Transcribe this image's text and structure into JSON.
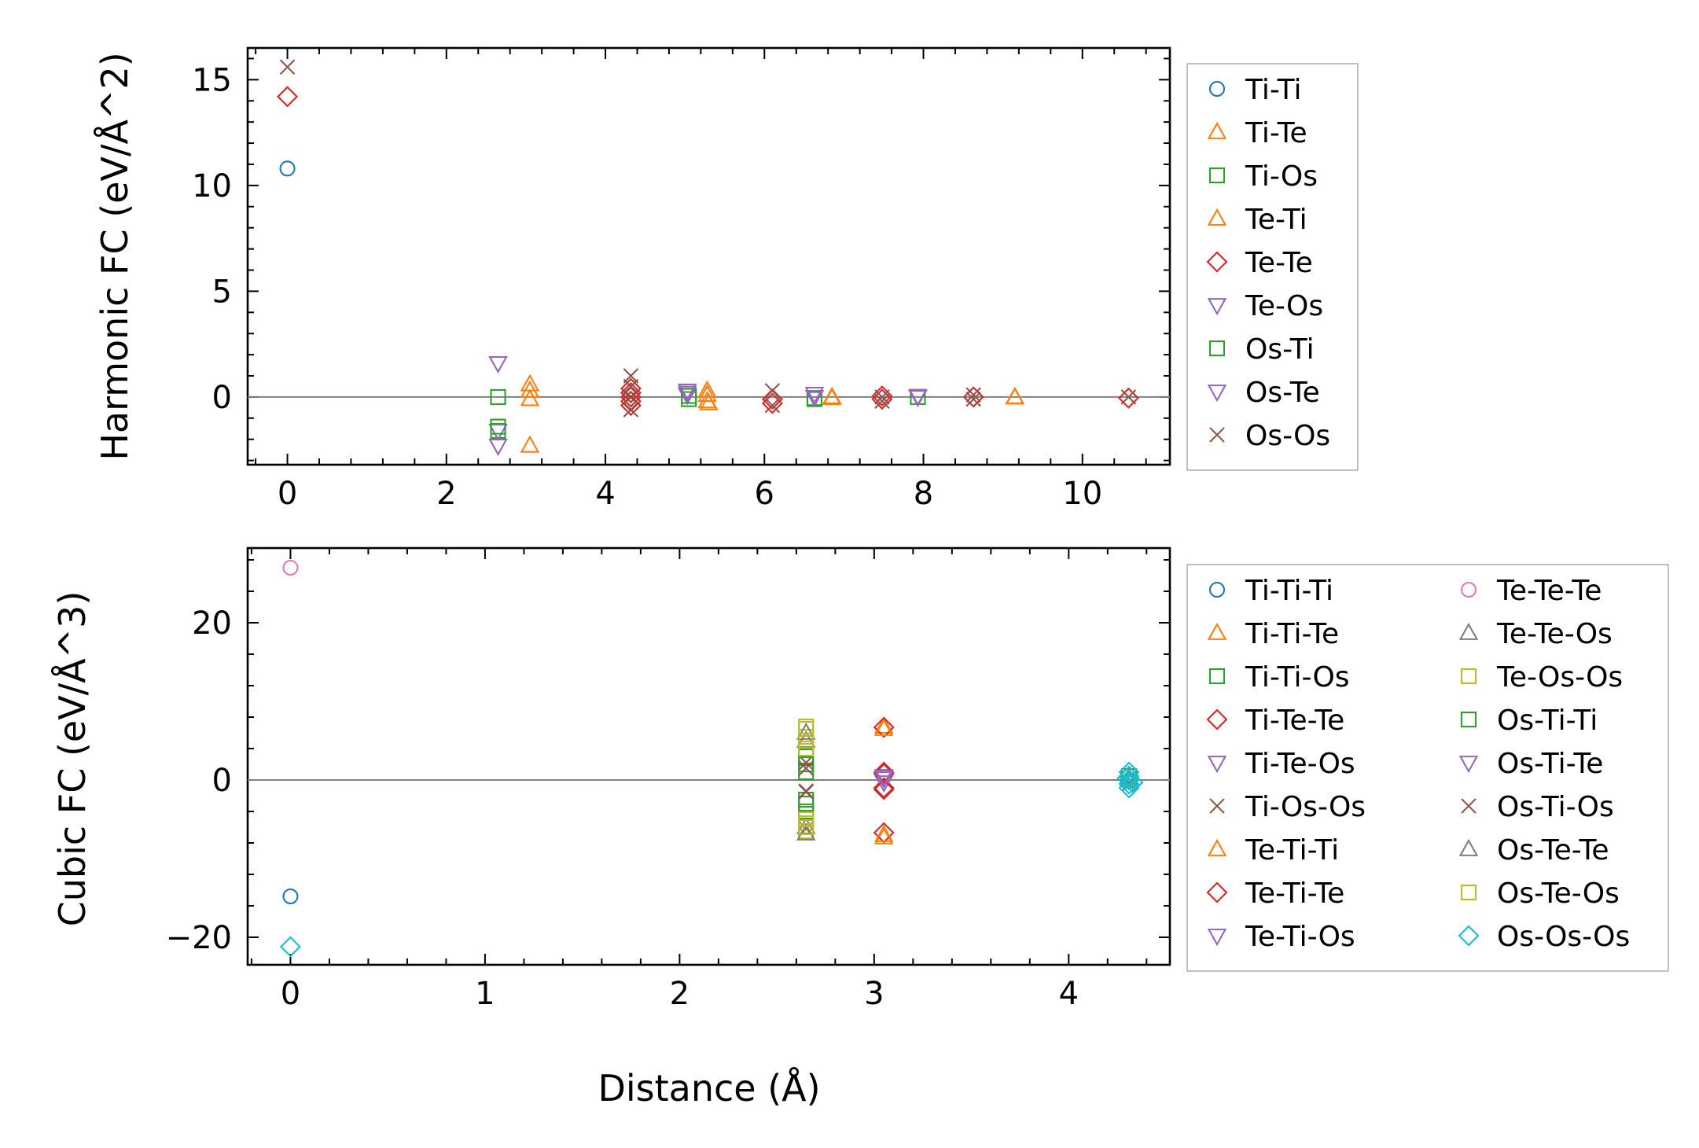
{
  "chart_data": [
    {
      "type": "scatter",
      "panel": "top",
      "ylabel": "Harmonic FC (eV/Å^2)",
      "xlabel": "",
      "xlim": [
        -0.5,
        11.1
      ],
      "ylim": [
        -3.2,
        16.5
      ],
      "xticks": [
        "0",
        "2",
        "4",
        "6",
        "8",
        "10"
      ],
      "yticks": [
        "0",
        "5",
        "10",
        "15"
      ],
      "legend_position": "right-outside",
      "legend_columns": 1,
      "series": [
        {
          "name": "Ti-Ti",
          "marker": "circle",
          "color": "#1f77b4",
          "points": [
            [
              0,
              10.8
            ]
          ]
        },
        {
          "name": "Ti-Te",
          "marker": "triangle-up",
          "color": "#ff7f0e",
          "points": [
            [
              3.05,
              0.6
            ],
            [
              3.05,
              -0.1
            ],
            [
              3.05,
              -2.3
            ],
            [
              5.28,
              0.3
            ],
            [
              5.28,
              -0.2
            ],
            [
              6.85,
              -0.05
            ],
            [
              9.15,
              -0.02
            ]
          ]
        },
        {
          "name": "Ti-Os",
          "marker": "square",
          "color": "#2ca02c",
          "points": [
            [
              2.65,
              0.0
            ],
            [
              2.65,
              -1.6
            ],
            [
              5.05,
              -0.1
            ],
            [
              6.63,
              -0.1
            ],
            [
              7.93,
              0.0
            ]
          ]
        },
        {
          "name": "Te-Ti",
          "marker": "triangle-up",
          "color": "#ff7f0e",
          "points": [
            [
              3.05,
              0.3
            ],
            [
              5.28,
              0.1
            ],
            [
              5.3,
              -0.3
            ],
            [
              6.85,
              0.0
            ],
            [
              9.15,
              0.0
            ]
          ]
        },
        {
          "name": "Te-Te",
          "marker": "diamond",
          "color": "#d62728",
          "points": [
            [
              0,
              14.2
            ],
            [
              4.32,
              0.4
            ],
            [
              4.32,
              0.2
            ],
            [
              4.32,
              0.0
            ],
            [
              4.32,
              -0.2
            ],
            [
              4.32,
              -0.4
            ],
            [
              6.1,
              -0.1
            ],
            [
              6.1,
              -0.3
            ],
            [
              7.48,
              -0.1
            ],
            [
              7.48,
              0.05
            ],
            [
              8.63,
              0.0
            ],
            [
              10.58,
              -0.05
            ]
          ]
        },
        {
          "name": "Te-Os",
          "marker": "triangle-down",
          "color": "#9467bd",
          "points": [
            [
              2.65,
              1.6
            ],
            [
              2.65,
              -1.6
            ],
            [
              5.03,
              0.3
            ],
            [
              5.03,
              0.1
            ],
            [
              6.63,
              0.15
            ],
            [
              7.93,
              0.05
            ]
          ]
        },
        {
          "name": "Os-Ti",
          "marker": "square",
          "color": "#2ca02c",
          "points": [
            [
              2.65,
              -1.4
            ],
            [
              5.05,
              0.05
            ],
            [
              6.63,
              -0.05
            ]
          ]
        },
        {
          "name": "Os-Te",
          "marker": "triangle-down",
          "color": "#9467bd",
          "points": [
            [
              2.65,
              -2.3
            ],
            [
              5.03,
              0.2
            ],
            [
              6.63,
              0.0
            ],
            [
              7.93,
              0.0
            ]
          ]
        },
        {
          "name": "Os-Os",
          "marker": "x",
          "color": "#8c564b",
          "points": [
            [
              0,
              15.6
            ],
            [
              4.32,
              1.0
            ],
            [
              4.32,
              0.5
            ],
            [
              4.32,
              0.0
            ],
            [
              4.32,
              -0.6
            ],
            [
              6.1,
              0.3
            ],
            [
              6.1,
              -0.4
            ],
            [
              7.48,
              0.0
            ],
            [
              7.48,
              -0.2
            ],
            [
              8.63,
              0.1
            ],
            [
              8.63,
              -0.1
            ],
            [
              10.58,
              0.0
            ]
          ]
        }
      ]
    },
    {
      "type": "scatter",
      "panel": "bottom",
      "ylabel": "Cubic FC (eV/Å^3)",
      "xlabel": "Distance (Å)",
      "xlim": [
        -0.22,
        4.52
      ],
      "ylim": [
        -23.5,
        29.5
      ],
      "xticks": [
        "0",
        "1",
        "2",
        "3",
        "4"
      ],
      "yticks": [
        "−20",
        "0",
        "20"
      ],
      "legend_position": "right-outside",
      "legend_columns": 2,
      "series": [
        {
          "name": "Ti-Ti-Ti",
          "marker": "circle",
          "color": "#1f77b4",
          "points": [
            [
              0,
              -14.8
            ]
          ]
        },
        {
          "name": "Ti-Ti-Te",
          "marker": "triangle-up",
          "color": "#ff7f0e",
          "points": [
            [
              3.05,
              6.8
            ],
            [
              3.05,
              -7.3
            ]
          ]
        },
        {
          "name": "Ti-Ti-Os",
          "marker": "square",
          "color": "#2ca02c",
          "points": [
            [
              2.65,
              3.0
            ],
            [
              2.65,
              1.0
            ],
            [
              2.65,
              -2.5
            ],
            [
              2.65,
              -4.0
            ],
            [
              4.31,
              0.5
            ]
          ]
        },
        {
          "name": "Ti-Te-Te",
          "marker": "diamond",
          "color": "#d62728",
          "points": [
            [
              3.05,
              6.7
            ],
            [
              3.05,
              1.0
            ],
            [
              3.05,
              -1.0
            ],
            [
              3.05,
              -6.7
            ]
          ]
        },
        {
          "name": "Ti-Te-Os",
          "marker": "triangle-down",
          "color": "#9467bd",
          "points": [
            [
              3.05,
              0.5
            ],
            [
              3.05,
              -0.3
            ]
          ]
        },
        {
          "name": "Ti-Os-Os",
          "marker": "x",
          "color": "#8c564b",
          "points": [
            [
              2.65,
              2.2
            ],
            [
              2.65,
              -1.4
            ],
            [
              2.65,
              -6.2
            ]
          ]
        },
        {
          "name": "Te-Ti-Ti",
          "marker": "triangle-up",
          "color": "#ff7f0e",
          "points": [
            [
              3.05,
              6.5
            ],
            [
              3.05,
              -7.0
            ]
          ]
        },
        {
          "name": "Te-Ti-Te",
          "marker": "diamond",
          "color": "#d62728",
          "points": [
            [
              3.05,
              0.8
            ],
            [
              3.05,
              -1.2
            ]
          ]
        },
        {
          "name": "Te-Ti-Os",
          "marker": "triangle-down",
          "color": "#9467bd",
          "points": [
            [
              3.05,
              0.2
            ]
          ]
        },
        {
          "name": "Te-Te-Te",
          "marker": "circle",
          "color": "#e377c2",
          "points": [
            [
              0,
              27.0
            ]
          ]
        },
        {
          "name": "Te-Te-Os",
          "marker": "triangle-up",
          "color": "#7f7f7f",
          "points": [
            [
              2.65,
              5.0
            ],
            [
              2.65,
              -6.0
            ],
            [
              4.31,
              0.0
            ]
          ]
        },
        {
          "name": "Te-Os-Os",
          "marker": "square",
          "color": "#bcbd22",
          "points": [
            [
              2.65,
              6.5
            ],
            [
              2.65,
              5.5
            ],
            [
              2.65,
              4.0
            ],
            [
              2.65,
              -5.5
            ],
            [
              2.65,
              -6.5
            ]
          ]
        },
        {
          "name": "Os-Ti-Ti",
          "marker": "square",
          "color": "#2ca02c",
          "points": [
            [
              2.65,
              2.0
            ],
            [
              2.65,
              -3.0
            ]
          ]
        },
        {
          "name": "Os-Ti-Te",
          "marker": "triangle-down",
          "color": "#9467bd",
          "points": [
            [
              3.05,
              0.4
            ]
          ]
        },
        {
          "name": "Os-Ti-Os",
          "marker": "x",
          "color": "#8c564b",
          "points": [
            [
              2.65,
              1.5
            ],
            [
              2.65,
              -1.5
            ],
            [
              4.31,
              -0.5
            ]
          ]
        },
        {
          "name": "Os-Te-Te",
          "marker": "triangle-up",
          "color": "#7f7f7f",
          "points": [
            [
              2.65,
              6.0
            ],
            [
              2.65,
              -6.8
            ],
            [
              4.31,
              0.3
            ]
          ]
        },
        {
          "name": "Os-Te-Os",
          "marker": "square",
          "color": "#bcbd22",
          "points": [
            [
              2.65,
              6.8
            ],
            [
              2.65,
              5.0
            ],
            [
              2.65,
              -5.0
            ],
            [
              2.65,
              -6.0
            ]
          ]
        },
        {
          "name": "Os-Os-Os",
          "marker": "diamond",
          "color": "#17becf",
          "points": [
            [
              0,
              -21.2
            ],
            [
              4.31,
              1.0
            ],
            [
              4.31,
              0.5
            ],
            [
              4.31,
              0.0
            ],
            [
              4.31,
              -0.5
            ],
            [
              4.31,
              -1.0
            ],
            [
              4.3,
              0.2
            ],
            [
              4.33,
              -0.3
            ]
          ]
        }
      ]
    }
  ]
}
